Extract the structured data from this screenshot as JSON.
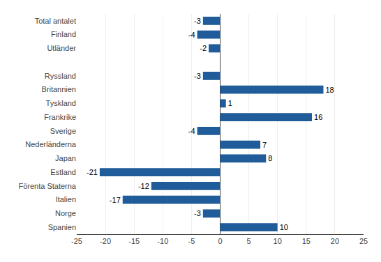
{
  "chart_data": {
    "type": "bar",
    "orientation": "horizontal",
    "categories": [
      "Total antalet",
      "Finland",
      "Utländer",
      null,
      "Ryssland",
      "Britannien",
      "Tyskland",
      "Frankrike",
      "Sverige",
      "Nederländerna",
      "Japan",
      "Estland",
      "Förenta Staterna",
      "Italien",
      "Norge",
      "Spanien"
    ],
    "values": [
      -3,
      -4,
      -2,
      null,
      -3,
      18,
      1,
      16,
      -4,
      7,
      8,
      -21,
      -12,
      -17,
      -3,
      10
    ],
    "color": "#1F5C99",
    "xlim": [
      -25,
      25
    ],
    "xticks": [
      -25,
      -20,
      -15,
      -10,
      -5,
      0,
      5,
      10,
      15,
      20,
      25
    ],
    "grid": true,
    "data_labels": true
  }
}
